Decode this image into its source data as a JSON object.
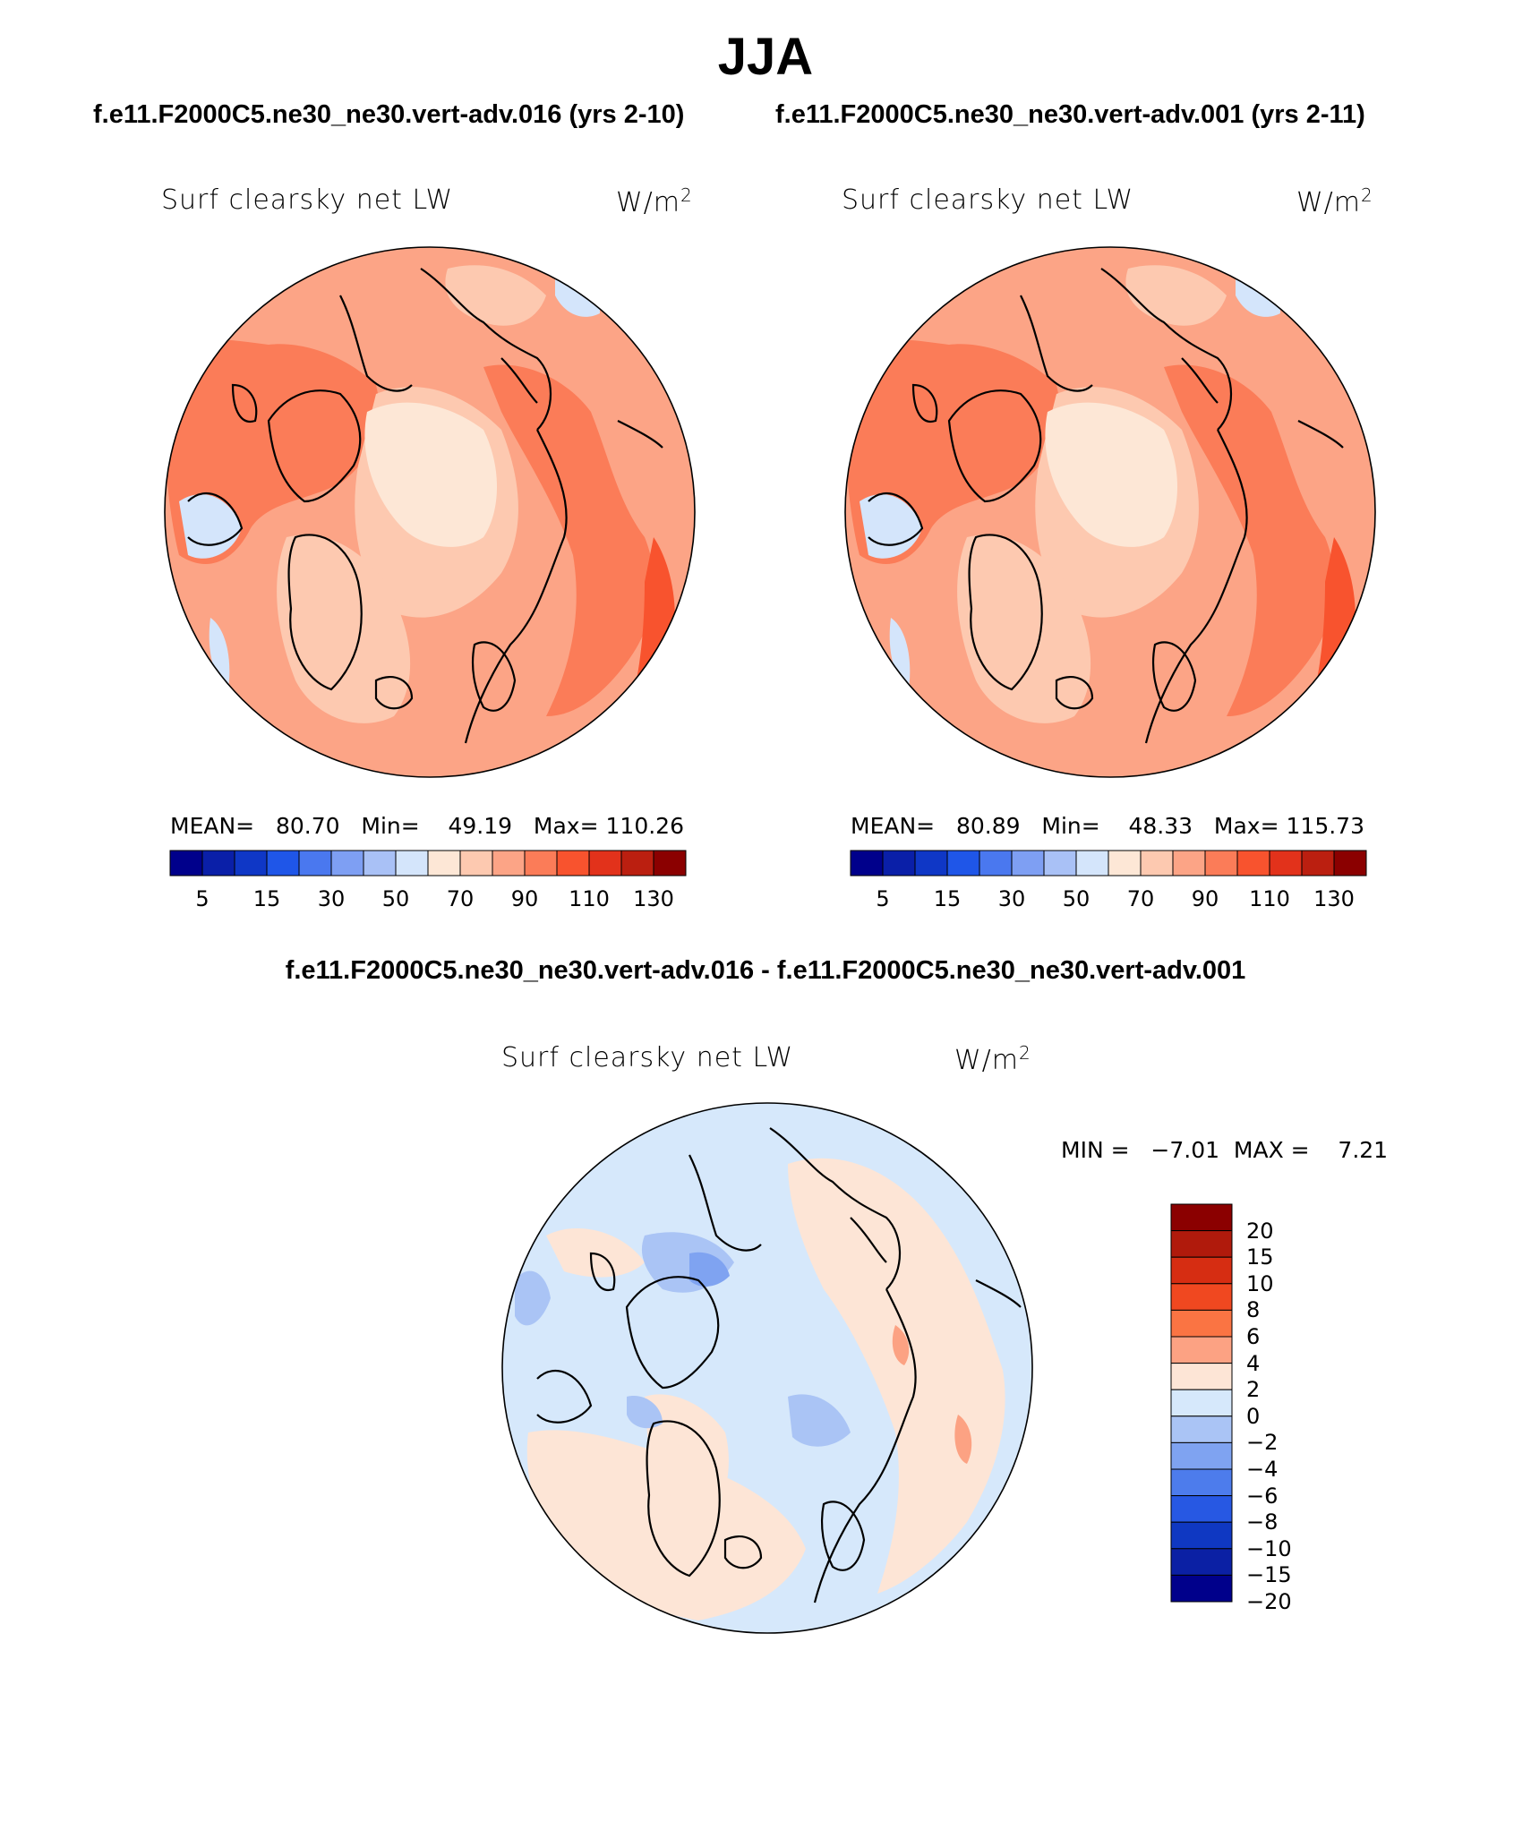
{
  "header": {
    "title": "JJA",
    "case_left": "f.e11.F2000C5.ne30_ne30.vert-adv.016 (yrs 2-10)",
    "case_right": "f.e11.F2000C5.ne30_ne30.vert-adv.001 (yrs 2-11)"
  },
  "panels": [
    {
      "variable": "Surf clearsky net LW",
      "units_base": "W/m",
      "units_exp": "2",
      "mean_label": "MEAN=",
      "mean_value": "80.70",
      "min_label": "Min=",
      "min_value": "49.19",
      "max_label": "Max=",
      "max_value": "110.26"
    },
    {
      "variable": "Surf clearsky net LW",
      "units_base": "W/m",
      "units_exp": "2",
      "mean_label": "MEAN=",
      "mean_value": "80.89",
      "min_label": "Min=",
      "min_value": "48.33",
      "max_label": "Max=",
      "max_value": "115.73"
    }
  ],
  "colorbar": {
    "colors": [
      "#00008b",
      "#0a1fa8",
      "#0f37c6",
      "#1f56e8",
      "#4a78ef",
      "#7e9ff3",
      "#a9c1f6",
      "#d4e5fb",
      "#fde7d6",
      "#fdc9b0",
      "#fca486",
      "#fb7c58",
      "#f8532e",
      "#e2321b",
      "#bb1f10",
      "#8b0000"
    ],
    "ticks": [
      "5",
      "15",
      "30",
      "50",
      "70",
      "90",
      "110",
      "130"
    ]
  },
  "difference": {
    "title": "f.e11.F2000C5.ne30_ne30.vert-adv.016 - f.e11.F2000C5.ne30_ne30.vert-adv.001",
    "variable": "Surf clearsky net LW",
    "units_base": "W/m",
    "units_exp": "2",
    "min_label": "MIN =",
    "min_value": "−7.01",
    "max_label": "MAX =",
    "max_value": "7.21",
    "colorbar": {
      "colors": [
        "#8b0000",
        "#b01a0c",
        "#d62d12",
        "#f04820",
        "#fa7443",
        "#fca283",
        "#fde5d6",
        "#d6e8fb",
        "#aac4f5",
        "#7fa3f1",
        "#4d7cec",
        "#2758e3",
        "#0f38c2",
        "#0b20a4",
        "#00008b"
      ],
      "labels": [
        "20",
        "15",
        "10",
        "8",
        "6",
        "4",
        "2",
        "0",
        "−2",
        "−4",
        "−6",
        "−8",
        "−10",
        "−15",
        "−20"
      ]
    }
  },
  "map_colors": {
    "field_base": "#fca486",
    "field_light": "#fdc9b0",
    "field_pale": "#fde7d6",
    "field_strong": "#fb7c58",
    "field_intense": "#f8532e",
    "field_blue": "#d4e5fb",
    "diff_base": "#d6e8fb",
    "diff_pos": "#fde5d6",
    "diff_pos2": "#fca283",
    "diff_neg": "#aac4f5",
    "diff_neg2": "#7fa3f1"
  }
}
